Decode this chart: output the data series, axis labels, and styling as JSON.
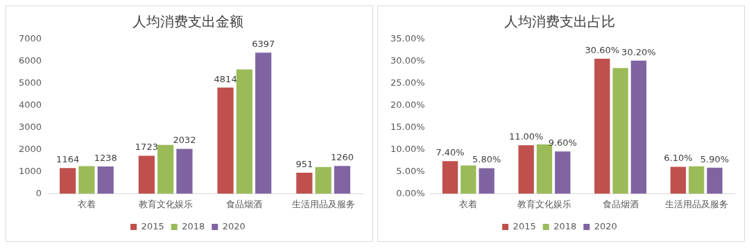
{
  "chart_data": [
    {
      "type": "bar",
      "title": "人均消费支出金额",
      "categories": [
        "衣着",
        "教育文化娱乐",
        "食品烟酒",
        "生活用品及服务"
      ],
      "series": [
        {
          "name": "2015",
          "color": "#c0504d",
          "values": [
            1164,
            1723,
            4814,
            951
          ],
          "value_labels": [
            "1164",
            "1723",
            "4814",
            "951"
          ]
        },
        {
          "name": "2018",
          "color": "#9bbb59",
          "values": [
            1250,
            2210,
            5640,
            1210
          ]
        },
        {
          "name": "2020",
          "color": "#8064a2",
          "values": [
            1238,
            2032,
            6397,
            1260
          ],
          "value_labels": [
            "1238",
            "2032",
            "6397",
            "1260"
          ]
        }
      ],
      "ylim": [
        0,
        7000
      ],
      "yticks": [
        0,
        1000,
        2000,
        3000,
        4000,
        5000,
        6000,
        7000
      ],
      "grid": false,
      "legend": "bottom"
    },
    {
      "type": "bar",
      "title": "人均消费支出占比",
      "categories": [
        "衣着",
        "教育文化娱乐",
        "食品烟酒",
        "生活用品及服务"
      ],
      "series": [
        {
          "name": "2015",
          "color": "#c0504d",
          "values": [
            7.4,
            11.0,
            30.6,
            6.1
          ],
          "value_labels": [
            "7.40%",
            "11.00%",
            "30.60%",
            "6.10%"
          ]
        },
        {
          "name": "2018",
          "color": "#9bbb59",
          "values": [
            6.4,
            11.2,
            28.5,
            6.2
          ]
        },
        {
          "name": "2020",
          "color": "#8064a2",
          "values": [
            5.8,
            9.6,
            30.2,
            5.9
          ],
          "value_labels": [
            "5.80%",
            "9.60%",
            "30.20%",
            "5.90%"
          ]
        }
      ],
      "ylim": [
        0,
        35
      ],
      "yticks": [
        {
          "value": 0,
          "label": "0.00%"
        },
        {
          "value": 5,
          "label": "5.00%"
        },
        {
          "value": 10,
          "label": "10.00%"
        },
        {
          "value": 15,
          "label": "15.00%"
        },
        {
          "value": 20,
          "label": "20.00%"
        },
        {
          "value": 25,
          "label": "25.00%"
        },
        {
          "value": 30,
          "label": "30.00%"
        },
        {
          "value": 35,
          "label": "35.00%"
        }
      ],
      "grid": false,
      "legend": "bottom"
    }
  ]
}
